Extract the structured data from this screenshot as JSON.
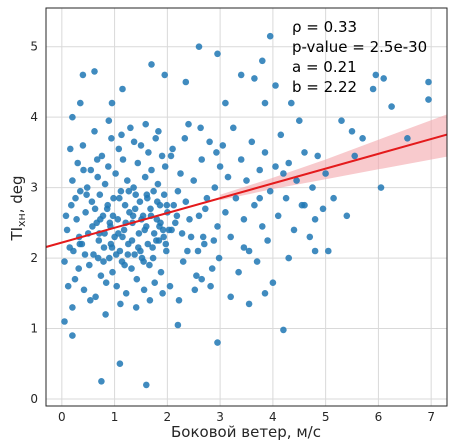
{
  "chart_data": {
    "type": "scatter",
    "title": "",
    "xlabel": "Боковой ветер, м/с",
    "ylabel_main": "TI",
    "ylabel_sub": "хн",
    "ylabel_unit": ", deg",
    "xlim": [
      -0.3,
      7.3
    ],
    "ylim": [
      -0.1,
      5.55
    ],
    "x_ticks": [
      0,
      1,
      2,
      3,
      4,
      5,
      6,
      7
    ],
    "y_ticks": [
      0,
      1,
      2,
      3,
      4,
      5
    ],
    "grid": true,
    "colors": {
      "points": "#1f77b4",
      "fit_line": "#e41a1c",
      "ci_band": "#f4a6ab"
    },
    "annotations": {
      "rho": "ρ = 0.33",
      "pvalue": "p-value = 2.5e-30",
      "a": "a = 0.21",
      "b": "b = 2.22"
    },
    "fit": {
      "slope": 0.21,
      "intercept": 2.22,
      "x_range": [
        -0.3,
        7.3
      ]
    },
    "ci_band": [
      {
        "x": 3.0,
        "lo": 2.82,
        "hi": 2.9
      },
      {
        "x": 4.0,
        "lo": 2.98,
        "hi": 3.14
      },
      {
        "x": 5.0,
        "lo": 3.12,
        "hi": 3.4
      },
      {
        "x": 6.0,
        "lo": 3.26,
        "hi": 3.68
      },
      {
        "x": 7.3,
        "lo": 3.44,
        "hi": 4.04
      }
    ],
    "points": [
      [
        0.05,
        1.95
      ],
      [
        0.1,
        2.4
      ],
      [
        0.18,
        2.75
      ],
      [
        0.2,
        3.1
      ],
      [
        0.22,
        2.1
      ],
      [
        0.25,
        1.7
      ],
      [
        0.28,
        2.55
      ],
      [
        0.3,
        3.35
      ],
      [
        0.32,
        1.85
      ],
      [
        0.35,
        2.95
      ],
      [
        0.38,
        2.2
      ],
      [
        0.4,
        3.6
      ],
      [
        0.42,
        1.55
      ],
      [
        0.45,
        2.65
      ],
      [
        0.48,
        3.0
      ],
      [
        0.5,
        2.35
      ],
      [
        0.52,
        1.9
      ],
      [
        0.55,
        3.25
      ],
      [
        0.57,
        2.8
      ],
      [
        0.6,
        2.05
      ],
      [
        0.62,
        3.8
      ],
      [
        0.64,
        1.45
      ],
      [
        0.66,
        2.5
      ],
      [
        0.68,
        3.15
      ],
      [
        0.7,
        2.25
      ],
      [
        0.72,
        2.9
      ],
      [
        0.74,
        1.75
      ],
      [
        0.76,
        3.45
      ],
      [
        0.78,
        2.6
      ],
      [
        0.8,
        2.15
      ],
      [
        0.82,
        3.05
      ],
      [
        0.84,
        1.65
      ],
      [
        0.86,
        2.7
      ],
      [
        0.88,
        3.3
      ],
      [
        0.9,
        2.0
      ],
      [
        0.92,
        2.45
      ],
      [
        0.94,
        3.7
      ],
      [
        0.96,
        1.8
      ],
      [
        0.98,
        2.85
      ],
      [
        1.0,
        2.3
      ],
      [
        1.02,
        3.2
      ],
      [
        1.04,
        1.6
      ],
      [
        1.06,
        2.55
      ],
      [
        1.08,
        3.55
      ],
      [
        1.1,
        2.1
      ],
      [
        1.12,
        2.95
      ],
      [
        1.14,
        1.95
      ],
      [
        1.16,
        3.4
      ],
      [
        1.18,
        2.4
      ],
      [
        1.2,
        2.75
      ],
      [
        1.22,
        1.5
      ],
      [
        1.24,
        3.1
      ],
      [
        1.26,
        2.2
      ],
      [
        1.28,
        2.65
      ],
      [
        1.3,
        3.85
      ],
      [
        1.32,
        1.85
      ],
      [
        1.34,
        2.5
      ],
      [
        1.36,
        3.0
      ],
      [
        1.38,
        2.05
      ],
      [
        1.4,
        2.9
      ],
      [
        1.42,
        1.7
      ],
      [
        1.44,
        3.35
      ],
      [
        1.46,
        2.35
      ],
      [
        1.48,
        2.8
      ],
      [
        1.5,
        3.6
      ],
      [
        1.52,
        2.0
      ],
      [
        1.54,
        2.6
      ],
      [
        1.56,
        1.55
      ],
      [
        1.58,
        3.15
      ],
      [
        1.6,
        2.45
      ],
      [
        1.62,
        2.85
      ],
      [
        1.64,
        3.5
      ],
      [
        1.66,
        1.9
      ],
      [
        1.68,
        2.7
      ],
      [
        1.7,
        3.25
      ],
      [
        1.72,
        2.15
      ],
      [
        1.74,
        2.95
      ],
      [
        1.76,
        1.65
      ],
      [
        1.78,
        3.7
      ],
      [
        1.8,
        2.55
      ],
      [
        1.82,
        3.05
      ],
      [
        1.84,
        2.25
      ],
      [
        1.86,
        2.75
      ],
      [
        1.88,
        1.8
      ],
      [
        1.9,
        3.45
      ],
      [
        1.92,
        2.4
      ],
      [
        1.94,
        2.9
      ],
      [
        1.96,
        3.3
      ],
      [
        1.98,
        2.1
      ],
      [
        2.0,
        2.65
      ],
      [
        2.05,
        1.6
      ],
      [
        2.1,
        3.55
      ],
      [
        2.15,
        2.5
      ],
      [
        2.2,
        2.95
      ],
      [
        2.25,
        3.2
      ],
      [
        2.3,
        1.95
      ],
      [
        2.35,
        2.8
      ],
      [
        2.4,
        3.9
      ],
      [
        2.45,
        2.3
      ],
      [
        2.5,
        3.1
      ],
      [
        2.55,
        1.75
      ],
      [
        2.6,
        2.6
      ],
      [
        2.65,
        3.4
      ],
      [
        2.7,
        2.2
      ],
      [
        2.75,
        2.85
      ],
      [
        2.8,
        3.65
      ],
      [
        2.85,
        1.85
      ],
      [
        2.9,
        3.0
      ],
      [
        2.95,
        2.45
      ],
      [
        3.0,
        3.3
      ],
      [
        0.08,
        2.6
      ],
      [
        0.15,
        2.15
      ],
      [
        0.33,
        2.3
      ],
      [
        0.47,
        2.9
      ],
      [
        0.58,
        2.45
      ],
      [
        0.69,
        2.0
      ],
      [
        0.73,
        2.55
      ],
      [
        0.81,
        2.35
      ],
      [
        0.87,
        2.75
      ],
      [
        0.93,
        2.2
      ],
      [
        0.97,
        2.6
      ],
      [
        1.03,
        2.05
      ],
      [
        1.09,
        2.85
      ],
      [
        1.15,
        2.3
      ],
      [
        1.21,
        2.5
      ],
      [
        1.27,
        2.95
      ],
      [
        1.33,
        2.25
      ],
      [
        1.39,
        2.7
      ],
      [
        1.45,
        2.15
      ],
      [
        1.51,
        2.55
      ],
      [
        1.57,
        2.4
      ],
      [
        1.63,
        2.2
      ],
      [
        1.69,
        2.6
      ],
      [
        1.75,
        2.35
      ],
      [
        1.81,
        2.8
      ],
      [
        1.87,
        2.5
      ],
      [
        1.93,
        2.3
      ],
      [
        1.99,
        2.75
      ],
      [
        2.08,
        2.4
      ],
      [
        2.18,
        2.6
      ],
      [
        0.12,
        1.6
      ],
      [
        0.26,
        2.85
      ],
      [
        0.44,
        2.05
      ],
      [
        0.63,
        2.7
      ],
      [
        0.79,
        1.95
      ],
      [
        0.91,
        2.5
      ],
      [
        1.07,
        2.35
      ],
      [
        1.19,
        1.9
      ],
      [
        1.35,
        2.6
      ],
      [
        1.49,
        2.1
      ],
      [
        1.61,
        2.9
      ],
      [
        1.73,
        2.0
      ],
      [
        1.85,
        2.45
      ],
      [
        1.97,
        2.2
      ],
      [
        2.12,
        2.75
      ],
      [
        2.28,
        2.35
      ],
      [
        2.42,
        2.55
      ],
      [
        2.58,
        2.1
      ],
      [
        2.72,
        2.7
      ],
      [
        2.88,
        2.25
      ],
      [
        0.2,
        1.3
      ],
      [
        0.34,
        2.2
      ],
      [
        0.54,
        1.4
      ],
      [
        0.71,
        2.35
      ],
      [
        0.83,
        1.2
      ],
      [
        0.95,
        2.15
      ],
      [
        1.11,
        1.35
      ],
      [
        1.25,
        2.05
      ],
      [
        1.41,
        1.3
      ],
      [
        1.55,
        1.95
      ],
      [
        1.67,
        1.4
      ],
      [
        1.79,
        2.25
      ],
      [
        1.91,
        1.5
      ],
      [
        2.03,
        2.4
      ],
      [
        2.22,
        1.4
      ],
      [
        2.38,
        2.1
      ],
      [
        2.52,
        1.55
      ],
      [
        2.68,
        2.3
      ],
      [
        2.82,
        1.6
      ],
      [
        2.98,
        2.0
      ],
      [
        0.16,
        3.55
      ],
      [
        0.41,
        3.25
      ],
      [
        0.67,
        3.4
      ],
      [
        0.89,
        3.95
      ],
      [
        1.13,
        3.75
      ],
      [
        1.37,
        3.65
      ],
      [
        1.59,
        3.9
      ],
      [
        1.83,
        3.8
      ],
      [
        2.07,
        3.45
      ],
      [
        2.33,
        3.7
      ],
      [
        2.63,
        3.85
      ],
      [
        2.93,
        3.5
      ],
      [
        0.05,
        1.1
      ],
      [
        0.2,
        0.9
      ],
      [
        0.75,
        0.25
      ],
      [
        1.1,
        0.5
      ],
      [
        1.6,
        0.2
      ],
      [
        2.2,
        1.05
      ],
      [
        2.95,
        0.8
      ],
      [
        4.2,
        0.98
      ],
      [
        0.2,
        4.0
      ],
      [
        0.35,
        4.2
      ],
      [
        0.4,
        4.6
      ],
      [
        0.62,
        4.65
      ],
      [
        0.95,
        4.2
      ],
      [
        1.15,
        4.4
      ],
      [
        1.7,
        4.75
      ],
      [
        1.95,
        4.6
      ],
      [
        2.35,
        4.5
      ],
      [
        2.6,
        5.0
      ],
      [
        2.95,
        4.9
      ],
      [
        3.1,
        4.2
      ],
      [
        3.4,
        4.6
      ],
      [
        3.65,
        4.55
      ],
      [
        3.8,
        4.8
      ],
      [
        3.85,
        4.2
      ],
      [
        3.95,
        5.15
      ],
      [
        4.05,
        4.45
      ],
      [
        4.35,
        4.2
      ],
      [
        4.5,
        3.95
      ],
      [
        3.05,
        3.6
      ],
      [
        3.1,
        2.65
      ],
      [
        3.15,
        3.15
      ],
      [
        3.2,
        2.3
      ],
      [
        3.25,
        3.85
      ],
      [
        3.3,
        2.85
      ],
      [
        3.35,
        1.8
      ],
      [
        3.4,
        3.4
      ],
      [
        3.45,
        2.55
      ],
      [
        3.5,
        3.1
      ],
      [
        3.55,
        2.1
      ],
      [
        3.6,
        3.65
      ],
      [
        3.65,
        2.75
      ],
      [
        3.7,
        1.95
      ],
      [
        3.75,
        3.25
      ],
      [
        3.8,
        2.45
      ],
      [
        3.85,
        3.5
      ],
      [
        3.9,
        2.25
      ],
      [
        3.95,
        2.95
      ],
      [
        4.0,
        1.65
      ],
      [
        4.05,
        3.3
      ],
      [
        4.1,
        2.6
      ],
      [
        4.15,
        3.75
      ],
      [
        4.25,
        2.85
      ],
      [
        4.3,
        3.35
      ],
      [
        4.4,
        2.4
      ],
      [
        4.45,
        3.1
      ],
      [
        4.55,
        2.75
      ],
      [
        4.6,
        3.5
      ],
      [
        4.7,
        2.3
      ],
      [
        4.75,
        3.0
      ],
      [
        4.8,
        2.55
      ],
      [
        4.85,
        3.45
      ],
      [
        4.95,
        2.7
      ],
      [
        5.0,
        3.2
      ],
      [
        5.05,
        2.1
      ],
      [
        5.15,
        2.85
      ],
      [
        5.3,
        3.95
      ],
      [
        5.4,
        2.6
      ],
      [
        5.55,
        3.45
      ],
      [
        5.7,
        3.7
      ],
      [
        5.9,
        4.4
      ],
      [
        5.95,
        4.6
      ],
      [
        6.05,
        3.0
      ],
      [
        6.1,
        4.55
      ],
      [
        6.25,
        4.15
      ],
      [
        6.55,
        3.7
      ],
      [
        6.95,
        4.5
      ],
      [
        6.95,
        4.25
      ],
      [
        4.8,
        2.1
      ],
      [
        3.55,
        1.35
      ],
      [
        3.85,
        1.5
      ],
      [
        4.3,
        2.0
      ],
      [
        4.6,
        2.75
      ],
      [
        5.5,
        3.8
      ],
      [
        3.2,
        1.45
      ],
      [
        2.65,
        1.7
      ],
      [
        3.45,
        2.15
      ],
      [
        3.75,
        2.85
      ],
      [
        4.2,
        3.2
      ]
    ]
  }
}
